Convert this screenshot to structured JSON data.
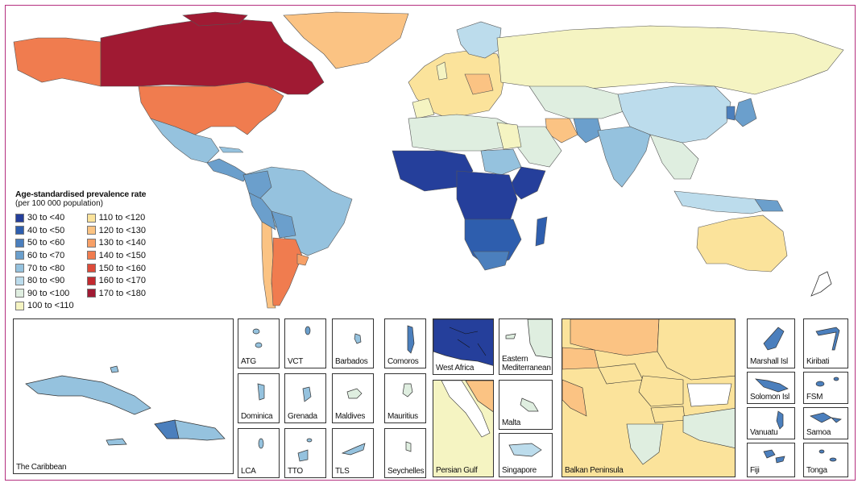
{
  "legend": {
    "title": "Age-standardised prevalence rate",
    "subtitle": "(per 100 000 population)",
    "items": [
      {
        "label": "30 to <40",
        "color": "#253f9b"
      },
      {
        "label": "40 to <50",
        "color": "#2e5eae"
      },
      {
        "label": "50 to <60",
        "color": "#4b7fbd"
      },
      {
        "label": "60 to <70",
        "color": "#6b9fcc"
      },
      {
        "label": "70 to <80",
        "color": "#95c2de"
      },
      {
        "label": "80 to <90",
        "color": "#bcdcec"
      },
      {
        "label": "90 to <100",
        "color": "#dfeee0"
      },
      {
        "label": "100 to <110",
        "color": "#f5f4c2"
      },
      {
        "label": "110 to <120",
        "color": "#fbe39b"
      },
      {
        "label": "120 to <130",
        "color": "#fbc383"
      },
      {
        "label": "130 to <140",
        "color": "#f7a067"
      },
      {
        "label": "140 to <150",
        "color": "#f07c4f"
      },
      {
        "label": "150 to <160",
        "color": "#dd4b3a"
      },
      {
        "label": "160 to <170",
        "color": "#c22a2f"
      },
      {
        "label": "170 to <180",
        "color": "#a01a33"
      }
    ]
  },
  "insets": {
    "caribbean": "The Caribbean",
    "atg": "ATG",
    "vct": "VCT",
    "barbados": "Barbados",
    "comoros": "Comoros",
    "dominica": "Dominica",
    "grenada": "Grenada",
    "maldives": "Maldives",
    "mauritius": "Mauritius",
    "lca": "LCA",
    "tto": "TTO",
    "tls": "TLS",
    "seychelles": "Seychelles",
    "west_africa": "West Africa",
    "eastern_med_1": "Eastern",
    "eastern_med_2": "Mediterranean",
    "malta": "Malta",
    "persian_gulf": "Persian Gulf",
    "singapore": "Singapore",
    "balkan": "Balkan Peninsula",
    "marshall": "Marshall Isl",
    "kiribati": "Kiribati",
    "solomon": "Solomon Isl",
    "fsm": "FSM",
    "vanuatu": "Vanuatu",
    "samoa": "Samoa",
    "fiji": "Fiji",
    "tonga": "Tonga"
  }
}
